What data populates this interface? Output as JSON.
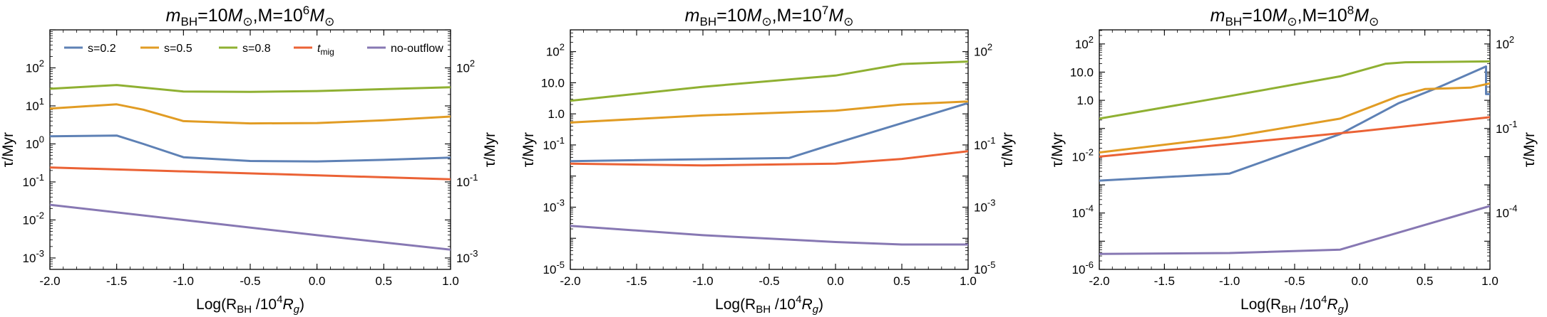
{
  "colors": {
    "s02": "#5e81b5",
    "s05": "#e19c24",
    "s08": "#8fb032",
    "tmig": "#eb6235",
    "noout": "#8778b3"
  },
  "chart_data": [
    {
      "type": "line",
      "title": {
        "m": "m",
        "bh": "BH",
        "eq1": "=10",
        "msun": "M",
        "sun": "⊙",
        "comma": ",M=10",
        "exp": "6"
      },
      "xlabel": {
        "pre": "Log(R",
        "sub": "BH",
        "mid": " /10",
        "exp": "4",
        "r": "R",
        "g": "g",
        "post": ")"
      },
      "ylabel": "τ/Myr",
      "xlim": [
        -2.0,
        1.0
      ],
      "ylim_log10": [
        -3.3,
        3.0
      ],
      "xticks": [
        "-2.0",
        "-1.5",
        "-1.0",
        "-0.5",
        "0.0",
        "0.5",
        "1.0"
      ],
      "yticks_left": [
        {
          "base": "10",
          "exp": "-3",
          "e": -3
        },
        {
          "base": "10",
          "exp": "-2",
          "e": -2
        },
        {
          "base": "10",
          "exp": "-1",
          "e": -1
        },
        {
          "base": "10",
          "exp": "0",
          "e": 0
        },
        {
          "base": "10",
          "exp": "1",
          "e": 1
        },
        {
          "base": "10",
          "exp": "2",
          "e": 2
        }
      ],
      "yticks_right": [
        {
          "base": "10",
          "exp": "-3",
          "e": -3
        },
        {
          "base": "10",
          "exp": "-1",
          "e": -1
        },
        {
          "base": "10",
          "exp": "2",
          "e": 2
        }
      ],
      "legend": {
        "position": "top",
        "entries": [
          {
            "key": "s02",
            "label": "s=0.2"
          },
          {
            "key": "s05",
            "label": "s=0.5"
          },
          {
            "key": "s08",
            "label": "s=0.8"
          },
          {
            "key": "tmig",
            "label": "t",
            "sub": "mig"
          },
          {
            "key": "noout",
            "label": "no-outflow"
          }
        ]
      },
      "series": [
        {
          "key": "s02",
          "name": "s=0.2",
          "x": [
            -2.0,
            -1.5,
            -1.3,
            -1.0,
            -0.5,
            0.0,
            0.5,
            1.0
          ],
          "log10y": [
            0.2,
            0.22,
            0.0,
            -0.35,
            -0.45,
            -0.46,
            -0.42,
            -0.36
          ]
        },
        {
          "key": "s05",
          "name": "s=0.5",
          "x": [
            -2.0,
            -1.5,
            -1.3,
            -1.0,
            -0.5,
            0.0,
            0.5,
            1.0
          ],
          "log10y": [
            0.93,
            1.04,
            0.9,
            0.6,
            0.54,
            0.55,
            0.62,
            0.72
          ]
        },
        {
          "key": "s08",
          "name": "s=0.8",
          "x": [
            -2.0,
            -1.5,
            -1.0,
            -0.5,
            0.0,
            0.5,
            1.0
          ],
          "log10y": [
            1.45,
            1.55,
            1.38,
            1.37,
            1.39,
            1.44,
            1.49
          ]
        },
        {
          "key": "tmig",
          "name": "t_mig",
          "x": [
            -2.0,
            1.0
          ],
          "log10y": [
            -0.62,
            -0.93
          ]
        },
        {
          "key": "noout",
          "name": "no-outflow",
          "x": [
            -2.0,
            -1.0,
            0.0,
            1.0
          ],
          "log10y": [
            -1.6,
            -2.0,
            -2.4,
            -2.78
          ]
        }
      ]
    },
    {
      "type": "line",
      "title": {
        "m": "m",
        "bh": "BH",
        "eq1": "=10",
        "msun": "M",
        "sun": "⊙",
        "comma": ",M=10",
        "exp": "7"
      },
      "xlabel": {
        "pre": "Log(R",
        "sub": "BH",
        "mid": " /10",
        "exp": "4",
        "r": "R",
        "g": "g",
        "post": ")"
      },
      "ylabel": "τ/Myr",
      "xlim": [
        -2.0,
        1.0
      ],
      "ylim_log10": [
        -5.0,
        2.7
      ],
      "xticks": [
        "-2.0",
        "-1.5",
        "-1.0",
        "-0.5",
        "0.0",
        "0.5",
        "1.0"
      ],
      "yticks_left": [
        {
          "base": "10",
          "exp": "-5",
          "e": -5
        },
        {
          "base": "10",
          "exp": "-3",
          "e": -3
        },
        {
          "base": "10",
          "exp": "-1",
          "e": -1
        },
        {
          "base": "1.0",
          "exp": "",
          "e": 0
        },
        {
          "base": "10.0",
          "exp": "",
          "e": 1
        },
        {
          "base": "10",
          "exp": "2",
          "e": 2
        }
      ],
      "yticks_right": [
        {
          "base": "10",
          "exp": "-5",
          "e": -5
        },
        {
          "base": "10",
          "exp": "-3",
          "e": -3
        },
        {
          "base": "10",
          "exp": "-1",
          "e": -1
        },
        {
          "base": "10",
          "exp": "2",
          "e": 2
        }
      ],
      "legend": null,
      "series": [
        {
          "key": "s02",
          "name": "s=0.2",
          "x": [
            -2.0,
            -0.35,
            0.0,
            0.5,
            1.0
          ],
          "log10y": [
            -1.52,
            -1.42,
            -0.95,
            -0.3,
            0.35
          ]
        },
        {
          "key": "s05",
          "name": "s=0.5",
          "x": [
            -2.0,
            -1.0,
            0.0,
            0.5,
            1.0
          ],
          "log10y": [
            -0.28,
            -0.05,
            0.1,
            0.3,
            0.4
          ]
        },
        {
          "key": "s08",
          "name": "s=0.8",
          "x": [
            -2.0,
            -1.0,
            0.0,
            0.5,
            1.0
          ],
          "log10y": [
            0.42,
            0.87,
            1.23,
            1.6,
            1.68
          ]
        },
        {
          "key": "tmig",
          "name": "t_mig",
          "x": [
            -2.0,
            -1.0,
            0.0,
            0.5,
            1.0
          ],
          "log10y": [
            -1.6,
            -1.66,
            -1.6,
            -1.45,
            -1.2
          ]
        },
        {
          "key": "noout",
          "name": "no-outflow",
          "x": [
            -2.0,
            -1.0,
            0.0,
            0.5,
            1.0
          ],
          "log10y": [
            -3.6,
            -3.9,
            -4.12,
            -4.2,
            -4.2
          ]
        }
      ]
    },
    {
      "type": "line",
      "title": {
        "m": "m",
        "bh": "BH",
        "eq1": "=10",
        "msun": "M",
        "sun": "⊙",
        "comma": ",M=10",
        "exp": "8"
      },
      "xlabel": {
        "pre": "Log(R",
        "sub": "BH",
        "mid": " /10",
        "exp": "4",
        "r": "R",
        "g": "g",
        "post": ")"
      },
      "ylabel": "τ/Myr",
      "xlim": [
        -2.0,
        1.0
      ],
      "ylim_log10": [
        -6.0,
        2.5
      ],
      "xticks": [
        "-2.0",
        "-1.5",
        "-1.0",
        "-0.5",
        "0.0",
        "0.5",
        "1.0"
      ],
      "yticks_left": [
        {
          "base": "10",
          "exp": "-6",
          "e": -6
        },
        {
          "base": "10",
          "exp": "-4",
          "e": -4
        },
        {
          "base": "10",
          "exp": "-2",
          "e": -2
        },
        {
          "base": "1.0",
          "exp": "",
          "e": 0
        },
        {
          "base": "10.0",
          "exp": "",
          "e": 1
        },
        {
          "base": "10",
          "exp": "2",
          "e": 2
        }
      ],
      "yticks_right": [
        {
          "base": "10",
          "exp": "-4",
          "e": -4
        },
        {
          "base": "10",
          "exp": "-1",
          "e": -1
        },
        {
          "base": "10",
          "exp": "2",
          "e": 2
        }
      ],
      "legend": null,
      "series": [
        {
          "key": "s02",
          "name": "s=0.2",
          "x": [
            -2.0,
            -1.0,
            -0.15,
            0.3,
            0.6,
            0.97,
            0.97,
            1.0
          ],
          "log10y": [
            -2.85,
            -2.6,
            -1.2,
            -0.1,
            0.45,
            1.2,
            0.22,
            0.22
          ]
        },
        {
          "key": "s05",
          "name": "s=0.5",
          "x": [
            -2.0,
            -1.0,
            -0.15,
            0.3,
            0.5,
            0.85,
            1.0
          ],
          "log10y": [
            -1.85,
            -1.3,
            -0.65,
            0.15,
            0.4,
            0.45,
            0.6
          ]
        },
        {
          "key": "s08",
          "name": "s=0.8",
          "x": [
            -2.0,
            -1.0,
            -0.15,
            0.2,
            0.35,
            1.0
          ],
          "log10y": [
            -0.65,
            0.15,
            0.85,
            1.3,
            1.35,
            1.38
          ]
        },
        {
          "key": "tmig",
          "name": "t_mig",
          "x": [
            -2.0,
            -1.0,
            0.0,
            1.0
          ],
          "log10y": [
            -2.0,
            -1.55,
            -1.1,
            -0.6
          ]
        },
        {
          "key": "noout",
          "name": "no-outflow",
          "x": [
            -2.0,
            -1.0,
            -0.15,
            1.0
          ],
          "log10y": [
            -5.45,
            -5.42,
            -5.3,
            -3.75
          ]
        }
      ]
    }
  ]
}
